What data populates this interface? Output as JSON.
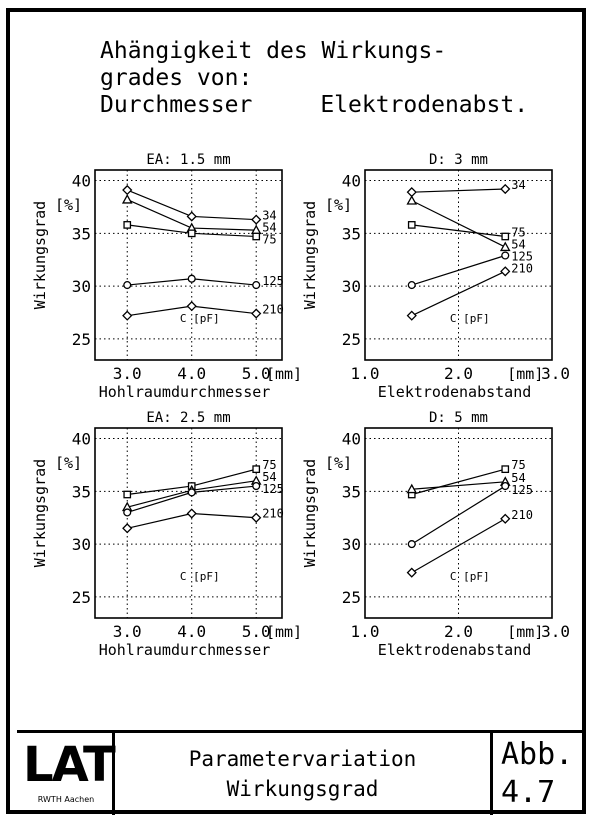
{
  "title": {
    "line1": "Ahängigkeit des Wirkungs-",
    "line2": "grades von:",
    "line3_left": "Durchmesser",
    "line3_right": "Elektrodenabst."
  },
  "footer": {
    "logo": "LAT",
    "logo_sub": "RWTH Aachen",
    "title_line1": "Parametervariation",
    "title_line2": "Wirkungsgrad",
    "abb_label": "Abb.",
    "abb_number": "4.7"
  },
  "chart_data": [
    {
      "type": "line",
      "title": "EA: 1.5 mm",
      "xlabel": "Hohlraumdurchmesser",
      "x_unit": "[mm]",
      "ylabel": "Wirkungsgrad",
      "y_unit": "[%]",
      "xlim": [
        2.5,
        5.4
      ],
      "ylim": [
        23,
        41
      ],
      "x_ticks": [
        "3.0",
        "4.0",
        "5.0"
      ],
      "y_ticks": [
        "25",
        "30",
        "35",
        "40"
      ],
      "legend_title": "C [pF]",
      "grid": true,
      "x": [
        3.0,
        4.0,
        5.0
      ],
      "series": [
        {
          "name": "34",
          "marker": "diamond",
          "values": [
            39.1,
            36.6,
            36.3
          ]
        },
        {
          "name": "54",
          "marker": "triangle",
          "values": [
            38.2,
            35.5,
            35.3
          ]
        },
        {
          "name": "75",
          "marker": "square",
          "values": [
            35.8,
            35.0,
            34.7
          ]
        },
        {
          "name": "125",
          "marker": "circle",
          "values": [
            30.1,
            30.7,
            30.1
          ]
        },
        {
          "name": "210",
          "marker": "diamond",
          "values": [
            27.2,
            28.1,
            27.4
          ]
        }
      ]
    },
    {
      "type": "line",
      "title": "D: 3 mm",
      "xlabel": "Elektrodenabstand",
      "x_unit": "[mm]",
      "ylabel": "Wirkungsgrad",
      "y_unit": "[%]",
      "xlim": [
        1.0,
        3.0
      ],
      "ylim": [
        23,
        41
      ],
      "x_ticks": [
        "1.0",
        "2.0",
        "3.0"
      ],
      "y_ticks": [
        "25",
        "30",
        "35",
        "40"
      ],
      "legend_title": "C [pF]",
      "grid": true,
      "x": [
        1.5,
        2.5
      ],
      "series": [
        {
          "name": "34",
          "marker": "diamond",
          "values": [
            38.9,
            39.2
          ]
        },
        {
          "name": "54",
          "marker": "triangle",
          "values": [
            38.1,
            33.7
          ]
        },
        {
          "name": "75",
          "marker": "square",
          "values": [
            35.8,
            34.7
          ]
        },
        {
          "name": "125",
          "marker": "circle",
          "values": [
            30.1,
            32.9
          ]
        },
        {
          "name": "210",
          "marker": "diamond",
          "values": [
            27.2,
            31.4
          ]
        }
      ]
    },
    {
      "type": "line",
      "title": "EA: 2.5 mm",
      "xlabel": "Hohlraumdurchmesser",
      "x_unit": "[mm]",
      "ylabel": "Wirkungsgrad",
      "y_unit": "[%]",
      "xlim": [
        2.5,
        5.4
      ],
      "ylim": [
        23,
        41
      ],
      "x_ticks": [
        "3.0",
        "4.0",
        "5.0"
      ],
      "y_ticks": [
        "25",
        "30",
        "35",
        "40"
      ],
      "legend_title": "C [pF]",
      "grid": true,
      "x": [
        3.0,
        4.0,
        5.0
      ],
      "series": [
        {
          "name": "75",
          "marker": "square",
          "values": [
            34.7,
            35.5,
            37.1
          ]
        },
        {
          "name": "54",
          "marker": "triangle",
          "values": [
            33.5,
            35.1,
            36.0
          ]
        },
        {
          "name": "125",
          "marker": "circle",
          "values": [
            33.0,
            34.9,
            35.5
          ]
        },
        {
          "name": "210",
          "marker": "diamond",
          "values": [
            31.5,
            32.9,
            32.5
          ]
        }
      ]
    },
    {
      "type": "line",
      "title": "D: 5 mm",
      "xlabel": "Elektrodenabstand",
      "x_unit": "[mm]",
      "ylabel": "Wirkungsgrad",
      "y_unit": "[%]",
      "xlim": [
        1.0,
        3.0
      ],
      "ylim": [
        23,
        41
      ],
      "x_ticks": [
        "1.0",
        "2.0",
        "3.0"
      ],
      "y_ticks": [
        "25",
        "30",
        "35",
        "40"
      ],
      "legend_title": "C [pF]",
      "grid": true,
      "x": [
        1.5,
        2.5
      ],
      "series": [
        {
          "name": "75",
          "marker": "square",
          "values": [
            34.7,
            37.1
          ]
        },
        {
          "name": "54",
          "marker": "triangle",
          "values": [
            35.2,
            35.9
          ]
        },
        {
          "name": "125",
          "marker": "circle",
          "values": [
            30.0,
            35.5
          ]
        },
        {
          "name": "210",
          "marker": "diamond",
          "values": [
            27.3,
            32.4
          ]
        }
      ]
    }
  ]
}
